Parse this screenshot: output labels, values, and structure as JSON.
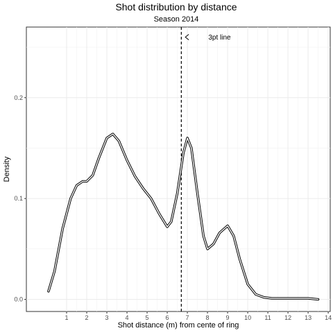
{
  "chart_data": {
    "type": "line",
    "title": "Shot distribution by distance",
    "subtitle": "Season 2014",
    "xlabel": "Shot distance (m) from cente of ring",
    "ylabel": "Density",
    "xlim": [
      -1.0,
      14.1
    ],
    "ylim": [
      -0.012,
      0.27
    ],
    "x_ticks": [
      1,
      2,
      3,
      4,
      5,
      6,
      7,
      8,
      9,
      10,
      11,
      12,
      13,
      14
    ],
    "y_ticks": [
      0.0,
      0.1,
      0.2
    ],
    "y_tick_labels": [
      "0.0",
      "0.1",
      "0.2"
    ],
    "grid": true,
    "vline": {
      "x": 6.7,
      "style": "dashed"
    },
    "annotation": {
      "text": "3pt line",
      "x": 8.6,
      "y": 0.26,
      "arrow_to_x": 6.9
    },
    "series": [
      {
        "x": [
          0.1,
          0.4,
          0.8,
          1.2,
          1.5,
          1.8,
          2.0,
          2.3,
          2.6,
          3.0,
          3.3,
          3.6,
          4.0,
          4.4,
          4.8,
          5.2,
          5.6,
          6.0,
          6.2,
          6.5,
          6.8,
          7.0,
          7.2,
          7.5,
          7.8,
          8.0,
          8.3,
          8.6,
          9.0,
          9.3,
          9.6,
          10.0,
          10.4,
          10.8,
          11.2,
          12.0,
          13.0,
          13.5
        ],
        "y": [
          0.008,
          0.028,
          0.07,
          0.1,
          0.113,
          0.117,
          0.117,
          0.123,
          0.14,
          0.16,
          0.164,
          0.157,
          0.138,
          0.122,
          0.11,
          0.1,
          0.085,
          0.072,
          0.077,
          0.105,
          0.145,
          0.16,
          0.15,
          0.105,
          0.063,
          0.05,
          0.055,
          0.066,
          0.073,
          0.063,
          0.04,
          0.015,
          0.005,
          0.002,
          0.001,
          0.001,
          0.001,
          0.0
        ]
      }
    ]
  }
}
